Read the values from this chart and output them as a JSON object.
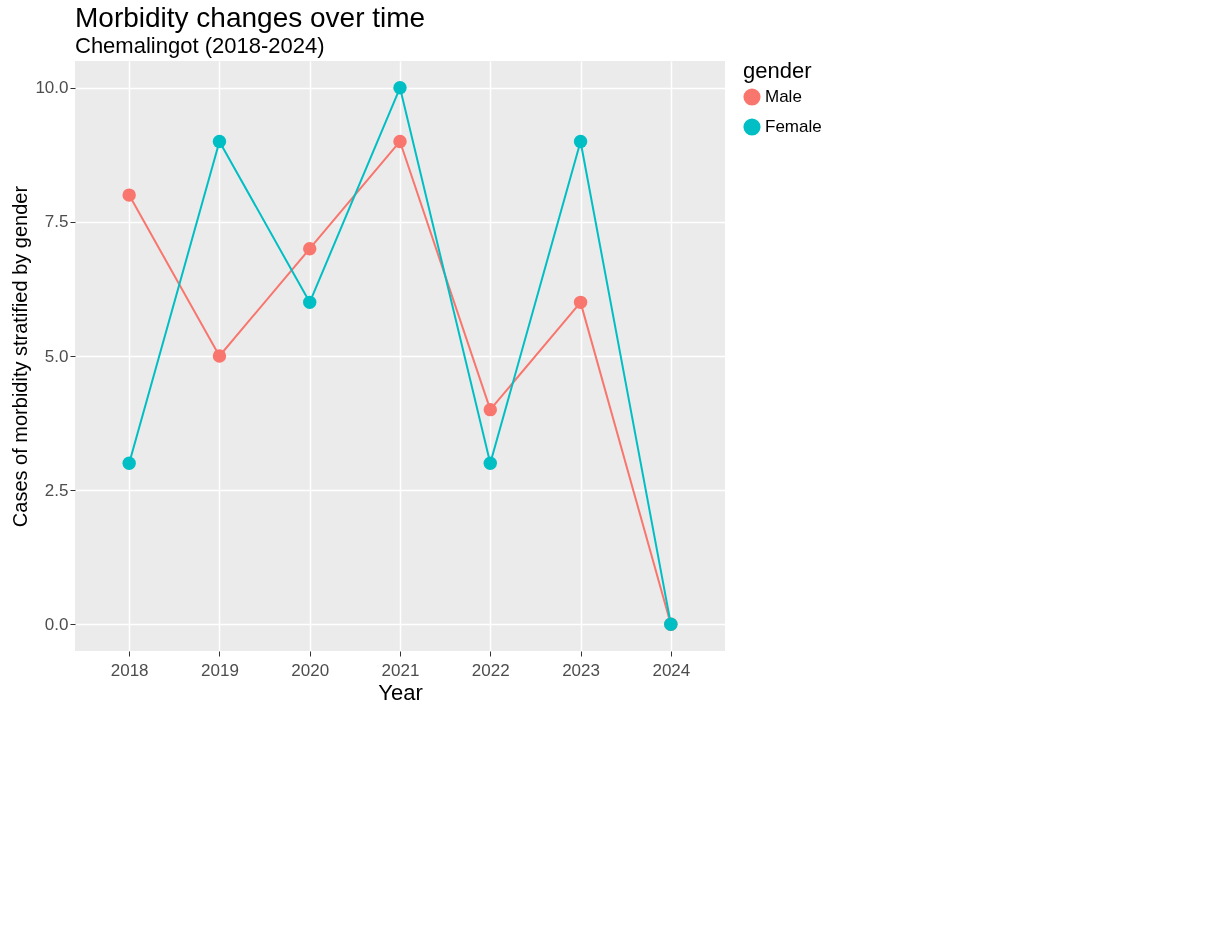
{
  "chart_data": {
    "type": "line",
    "title": "Morbidity changes over time",
    "subtitle": "Chemalingot  (2018-2024)",
    "xlabel": "Year",
    "ylabel": "Cases of morbidity stratified by gender",
    "legend_title": "gender",
    "categories": [
      "2018",
      "2019",
      "2020",
      "2021",
      "2022",
      "2023",
      "2024"
    ],
    "series": [
      {
        "name": "Male",
        "color": "#f8766d",
        "values": [
          8,
          5,
          7,
          9,
          4,
          6,
          0
        ]
      },
      {
        "name": "Female",
        "color": "#00bfc4",
        "values": [
          3,
          9,
          6,
          10,
          3,
          9,
          0
        ]
      }
    ],
    "ylim": [
      -0.5,
      10.5
    ],
    "yticks": [
      {
        "value": 0,
        "label": "0.0"
      },
      {
        "value": 2.5,
        "label": "2.5"
      },
      {
        "value": 5,
        "label": "5.0"
      },
      {
        "value": 7.5,
        "label": "7.5"
      },
      {
        "value": 10,
        "label": "10.0"
      }
    ],
    "grid": true,
    "legend": "right",
    "marker": "circle",
    "line_style": "solid"
  }
}
